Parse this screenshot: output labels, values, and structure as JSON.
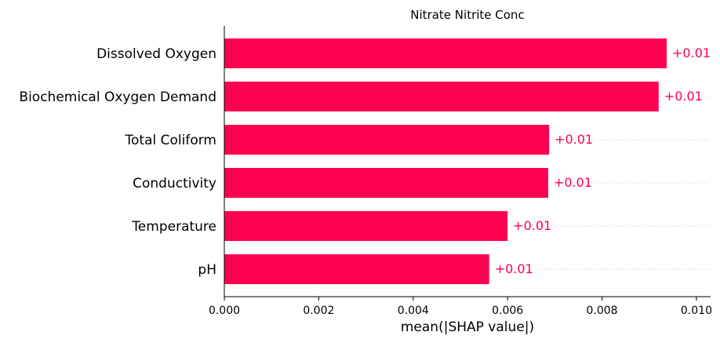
{
  "chart_data": {
    "type": "bar",
    "orientation": "horizontal",
    "title": "Nitrate Nitrite Conc",
    "xlabel": "mean(|SHAP value|)",
    "ylabel": "",
    "xlim": [
      0,
      0.0103
    ],
    "x_ticks": [
      "0.000",
      "0.002",
      "0.004",
      "0.006",
      "0.008",
      "0.010"
    ],
    "x_tick_values": [
      0,
      0.002,
      0.004,
      0.006,
      0.008,
      0.01
    ],
    "grid": false,
    "bar_color": "#ff0051",
    "categories": [
      "Dissolved Oxygen",
      "Biochemical Oxygen Demand",
      "Total Coliform",
      "Conductivity",
      "Temperature",
      "pH"
    ],
    "values": [
      0.00937,
      0.0092,
      0.00688,
      0.00686,
      0.006,
      0.00561
    ],
    "value_labels": [
      "+0.01",
      "+0.01",
      "+0.01",
      "+0.01",
      "+0.01",
      "+0.01"
    ]
  }
}
